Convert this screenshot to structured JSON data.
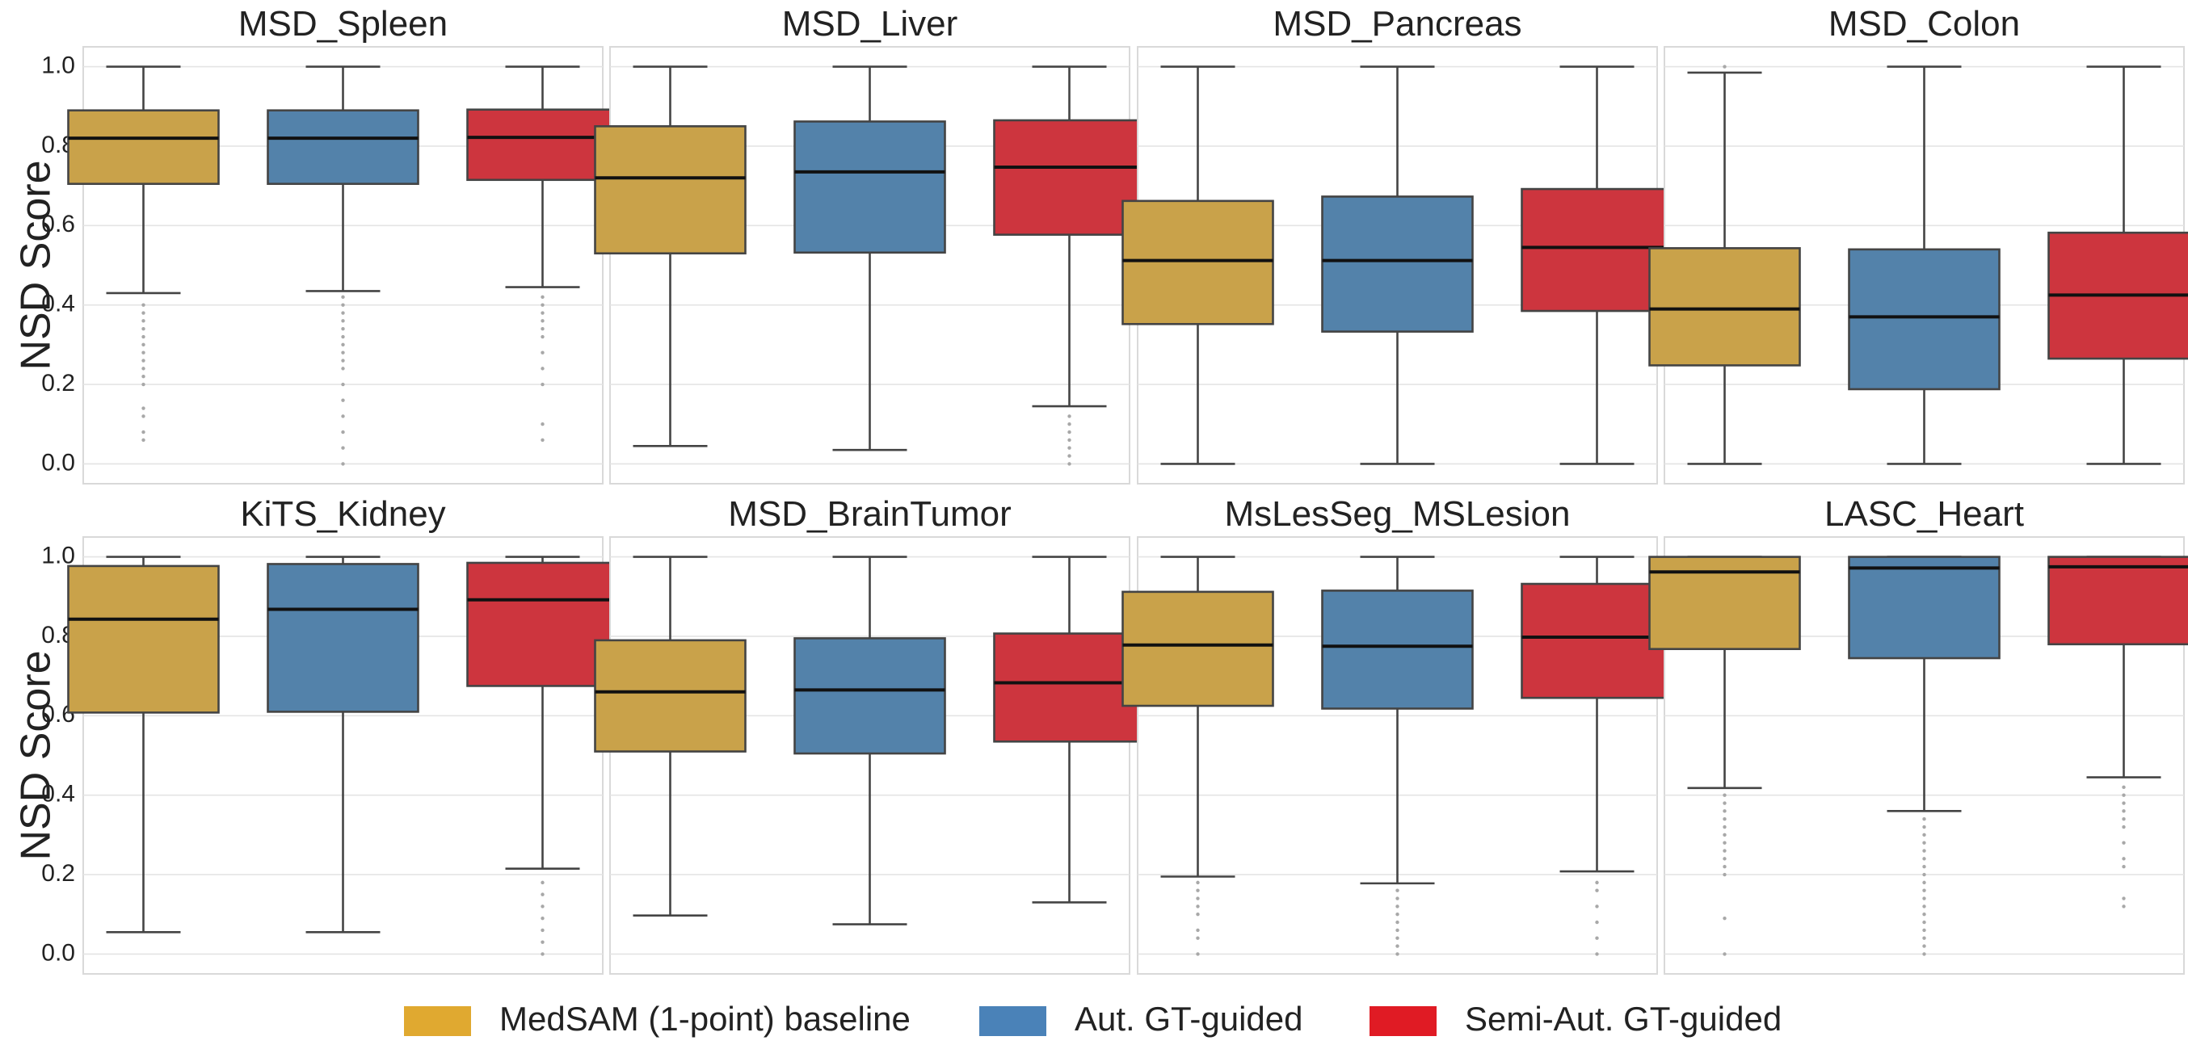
{
  "chart_data": {
    "type": "box",
    "ylabel": "NSD Score",
    "ylim": [
      -0.05,
      1.05
    ],
    "yticks": [
      0.0,
      0.2,
      0.4,
      0.6,
      0.8,
      1.0
    ],
    "ytick_labels": [
      "0.0",
      "0.2",
      "0.4",
      "0.6",
      "0.8",
      "1.0"
    ],
    "grid": true,
    "legend_position": "bottom-center",
    "series": [
      {
        "name": "MedSAM (1-point) baseline",
        "color": "#C9A24A",
        "legend_color": "#E0A930"
      },
      {
        "name": "Aut. GT-guided",
        "color": "#5382AA",
        "legend_color": "#4A82B8"
      },
      {
        "name": "Semi-Aut. GT-guided",
        "color": "#CD353E",
        "legend_color": "#E01B24"
      }
    ],
    "panels": [
      {
        "title": "MSD_Spleen",
        "boxes": [
          {
            "whisker_low": 0.43,
            "q1": 0.705,
            "median": 0.82,
            "q3": 0.89,
            "whisker_high": 1.0,
            "outliers": [
              0.06,
              0.08,
              0.12,
              0.14,
              0.2,
              0.22,
              0.24,
              0.26,
              0.28,
              0.3,
              0.32,
              0.34,
              0.36,
              0.38,
              0.4
            ]
          },
          {
            "whisker_low": 0.435,
            "q1": 0.705,
            "median": 0.82,
            "q3": 0.89,
            "whisker_high": 1.0,
            "outliers": [
              0.0,
              0.04,
              0.08,
              0.12,
              0.16,
              0.2,
              0.24,
              0.26,
              0.28,
              0.3,
              0.32,
              0.34,
              0.36,
              0.38,
              0.4,
              0.42
            ]
          },
          {
            "whisker_low": 0.445,
            "q1": 0.715,
            "median": 0.822,
            "q3": 0.892,
            "whisker_high": 1.0,
            "outliers": [
              0.06,
              0.1,
              0.2,
              0.24,
              0.28,
              0.32,
              0.34,
              0.36,
              0.38,
              0.4,
              0.42
            ]
          }
        ]
      },
      {
        "title": "MSD_Liver",
        "boxes": [
          {
            "whisker_low": 0.045,
            "q1": 0.53,
            "median": 0.72,
            "q3": 0.85,
            "whisker_high": 1.0,
            "outliers": []
          },
          {
            "whisker_low": 0.035,
            "q1": 0.532,
            "median": 0.735,
            "q3": 0.862,
            "whisker_high": 1.0,
            "outliers": []
          },
          {
            "whisker_low": 0.145,
            "q1": 0.577,
            "median": 0.747,
            "q3": 0.865,
            "whisker_high": 1.0,
            "outliers": [
              0.0,
              0.02,
              0.04,
              0.06,
              0.08,
              0.1,
              0.12
            ]
          }
        ]
      },
      {
        "title": "MSD_Pancreas",
        "boxes": [
          {
            "whisker_low": 0.0,
            "q1": 0.352,
            "median": 0.512,
            "q3": 0.662,
            "whisker_high": 1.0,
            "outliers": []
          },
          {
            "whisker_low": 0.0,
            "q1": 0.333,
            "median": 0.512,
            "q3": 0.673,
            "whisker_high": 1.0,
            "outliers": []
          },
          {
            "whisker_low": 0.0,
            "q1": 0.385,
            "median": 0.545,
            "q3": 0.692,
            "whisker_high": 1.0,
            "outliers": []
          }
        ]
      },
      {
        "title": "MSD_Colon",
        "boxes": [
          {
            "whisker_low": 0.0,
            "q1": 0.248,
            "median": 0.39,
            "q3": 0.543,
            "whisker_high": 0.985,
            "outliers": [
              1.0
            ]
          },
          {
            "whisker_low": 0.0,
            "q1": 0.188,
            "median": 0.37,
            "q3": 0.54,
            "whisker_high": 1.0,
            "outliers": []
          },
          {
            "whisker_low": 0.0,
            "q1": 0.265,
            "median": 0.425,
            "q3": 0.582,
            "whisker_high": 1.0,
            "outliers": []
          }
        ]
      },
      {
        "title": "KiTS_Kidney",
        "boxes": [
          {
            "whisker_low": 0.055,
            "q1": 0.608,
            "median": 0.843,
            "q3": 0.977,
            "whisker_high": 1.0,
            "outliers": []
          },
          {
            "whisker_low": 0.055,
            "q1": 0.61,
            "median": 0.868,
            "q3": 0.982,
            "whisker_high": 1.0,
            "outliers": []
          },
          {
            "whisker_low": 0.215,
            "q1": 0.675,
            "median": 0.892,
            "q3": 0.985,
            "whisker_high": 1.0,
            "outliers": [
              0.0,
              0.03,
              0.06,
              0.09,
              0.12,
              0.15,
              0.18
            ]
          }
        ]
      },
      {
        "title": "MSD_BrainTumor",
        "boxes": [
          {
            "whisker_low": 0.097,
            "q1": 0.51,
            "median": 0.66,
            "q3": 0.79,
            "whisker_high": 1.0,
            "outliers": []
          },
          {
            "whisker_low": 0.075,
            "q1": 0.505,
            "median": 0.665,
            "q3": 0.795,
            "whisker_high": 1.0,
            "outliers": []
          },
          {
            "whisker_low": 0.13,
            "q1": 0.535,
            "median": 0.683,
            "q3": 0.807,
            "whisker_high": 1.0,
            "outliers": []
          }
        ]
      },
      {
        "title": "MsLesSeg_MSLesion",
        "boxes": [
          {
            "whisker_low": 0.195,
            "q1": 0.625,
            "median": 0.778,
            "q3": 0.912,
            "whisker_high": 1.0,
            "outliers": [
              0.0,
              0.04,
              0.06,
              0.1,
              0.12,
              0.14,
              0.16,
              0.18
            ]
          },
          {
            "whisker_low": 0.178,
            "q1": 0.618,
            "median": 0.775,
            "q3": 0.915,
            "whisker_high": 1.0,
            "outliers": [
              0.0,
              0.02,
              0.04,
              0.06,
              0.08,
              0.1,
              0.12,
              0.14,
              0.16
            ]
          },
          {
            "whisker_low": 0.208,
            "q1": 0.645,
            "median": 0.798,
            "q3": 0.932,
            "whisker_high": 1.0,
            "outliers": [
              0.0,
              0.04,
              0.08,
              0.12,
              0.16,
              0.18
            ]
          }
        ]
      },
      {
        "title": "LASC_Heart",
        "boxes": [
          {
            "whisker_low": 0.418,
            "q1": 0.768,
            "median": 0.962,
            "q3": 1.0,
            "whisker_high": 1.0,
            "outliers": [
              0.0,
              0.09,
              0.2,
              0.22,
              0.24,
              0.26,
              0.28,
              0.3,
              0.32,
              0.34,
              0.36,
              0.38,
              0.4
            ]
          },
          {
            "whisker_low": 0.36,
            "q1": 0.745,
            "median": 0.972,
            "q3": 1.0,
            "whisker_high": 1.0,
            "outliers": [
              0.0,
              0.02,
              0.04,
              0.06,
              0.08,
              0.1,
              0.12,
              0.14,
              0.16,
              0.18,
              0.2,
              0.22,
              0.24,
              0.26,
              0.28,
              0.3,
              0.32,
              0.34
            ]
          },
          {
            "whisker_low": 0.445,
            "q1": 0.78,
            "median": 0.975,
            "q3": 1.0,
            "whisker_high": 1.0,
            "outliers": [
              0.12,
              0.14,
              0.22,
              0.24,
              0.28,
              0.32,
              0.34,
              0.36,
              0.38,
              0.4,
              0.42
            ]
          }
        ]
      }
    ]
  }
}
